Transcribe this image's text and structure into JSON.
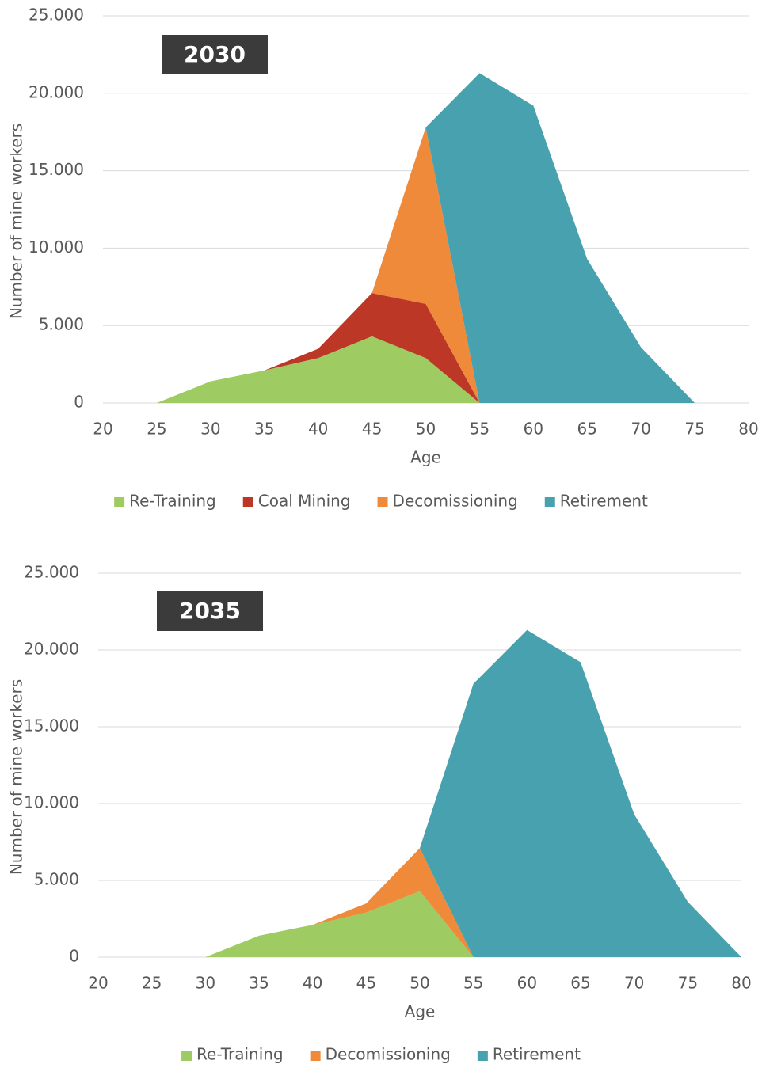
{
  "chart_data": [
    {
      "type": "stacked_area",
      "title": "2030",
      "xlabel": "Age",
      "ylabel": "Number of mine workers",
      "x": [
        20,
        25,
        30,
        35,
        40,
        45,
        50,
        55,
        60,
        65,
        70,
        75,
        80
      ],
      "xlim": [
        20,
        80
      ],
      "xticks": [
        20,
        25,
        30,
        35,
        40,
        45,
        50,
        55,
        60,
        65,
        70,
        75,
        80
      ],
      "ylim": [
        0,
        25000
      ],
      "yticks": [
        0,
        {
          "value": 5000,
          "label": "5.000"
        },
        {
          "value": 10000,
          "label": "10.000"
        },
        {
          "value": 15000,
          "label": "15.000"
        },
        {
          "value": 20000,
          "label": "20.000"
        },
        {
          "value": 25000,
          "label": "25.000"
        }
      ],
      "grid": true,
      "legend": "bottom",
      "series": [
        {
          "name": "Re-Training",
          "color": "#9ecb62",
          "values": [
            0,
            0,
            1400,
            2100,
            2900,
            4300,
            2900,
            0,
            0,
            0,
            0,
            0,
            0
          ]
        },
        {
          "name": "Coal Mining",
          "color": "#bd3727",
          "values": [
            0,
            0,
            0,
            0,
            600,
            2800,
            3500,
            0,
            0,
            0,
            0,
            0,
            0
          ]
        },
        {
          "name": "Decomissioning",
          "color": "#ef8a3b",
          "values": [
            0,
            0,
            0,
            0,
            0,
            0,
            11400,
            0,
            0,
            0,
            0,
            0,
            0
          ]
        },
        {
          "name": "Retirement",
          "color": "#48a1ae",
          "values": [
            0,
            0,
            0,
            0,
            0,
            0,
            0,
            21300,
            19200,
            9300,
            3600,
            0,
            0
          ]
        }
      ]
    },
    {
      "type": "stacked_area",
      "title": "2035",
      "xlabel": "Age",
      "ylabel": "Number of mine workers",
      "x": [
        20,
        25,
        30,
        35,
        40,
        45,
        50,
        55,
        60,
        65,
        70,
        75,
        80
      ],
      "xlim": [
        20,
        80
      ],
      "xticks": [
        20,
        25,
        30,
        35,
        40,
        45,
        50,
        55,
        60,
        65,
        70,
        75,
        80
      ],
      "ylim": [
        0,
        25000
      ],
      "yticks": [
        0,
        {
          "value": 5000,
          "label": "5.000"
        },
        {
          "value": 10000,
          "label": "10.000"
        },
        {
          "value": 15000,
          "label": "15.000"
        },
        {
          "value": 20000,
          "label": "20.000"
        },
        {
          "value": 25000,
          "label": "25.000"
        }
      ],
      "grid": true,
      "legend": "bottom",
      "series": [
        {
          "name": "Re-Training",
          "color": "#9ecb62",
          "values": [
            0,
            0,
            0,
            1400,
            2100,
            2900,
            4300,
            0,
            0,
            0,
            0,
            0,
            0
          ]
        },
        {
          "name": "Decomissioning",
          "color": "#ef8a3b",
          "values": [
            0,
            0,
            0,
            0,
            0,
            600,
            2800,
            0,
            0,
            0,
            0,
            0,
            0
          ]
        },
        {
          "name": "Retirement",
          "color": "#48a1ae",
          "values": [
            0,
            0,
            0,
            0,
            0,
            0,
            0,
            17800,
            21300,
            19200,
            9300,
            3600,
            0
          ]
        }
      ]
    }
  ]
}
